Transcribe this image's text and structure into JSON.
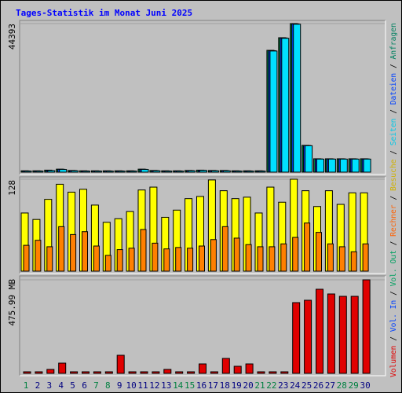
{
  "title": "Tages-Statistik im Monat Juni 2025",
  "separator": "/",
  "legend": [
    {
      "name": "Volumen",
      "color": "#e00000"
    },
    {
      "name": "Vol. In",
      "color": "#0040ff"
    },
    {
      "name": "Vol. Out",
      "color": "#00a060"
    },
    {
      "name": "Rechner",
      "color": "#ff6000"
    },
    {
      "name": "Besuche",
      "color": "#d0b000"
    },
    {
      "name": "Seiten",
      "color": "#00c8e8"
    },
    {
      "name": "Dateien",
      "color": "#0040ff"
    },
    {
      "name": "Anfragen",
      "color": "#008060"
    }
  ],
  "chart_data": [
    {
      "type": "bar",
      "ylim": [
        0,
        44393
      ],
      "yticks": [
        44393
      ],
      "series": [
        {
          "color": "#008040",
          "values": [
            400,
            400,
            600,
            900,
            500,
            400,
            400,
            400,
            400,
            400,
            900,
            500,
            400,
            400,
            500,
            600,
            500,
            500,
            400,
            400,
            400,
            36400,
            40170,
            44393,
            8000,
            4000,
            4000,
            4000,
            4000,
            4000
          ]
        },
        {
          "color": "#0040ff",
          "values": [
            350,
            350,
            500,
            850,
            450,
            350,
            350,
            350,
            350,
            350,
            850,
            450,
            350,
            350,
            450,
            550,
            450,
            450,
            350,
            350,
            350,
            36300,
            40100,
            44300,
            7950,
            3950,
            3950,
            3950,
            3950,
            3950
          ]
        },
        {
          "color": "#00e0ff",
          "values": [
            300,
            300,
            450,
            800,
            400,
            300,
            300,
            300,
            300,
            300,
            800,
            400,
            300,
            300,
            400,
            500,
            400,
            400,
            300,
            300,
            300,
            36200,
            40000,
            44200,
            7900,
            3900,
            3900,
            3900,
            3900,
            3900
          ]
        }
      ]
    },
    {
      "type": "bar",
      "ylim": [
        0,
        128
      ],
      "yticks": [
        128
      ],
      "series": [
        {
          "color": "#ffff00",
          "values": [
            81,
            72,
            100,
            121,
            110,
            114,
            92,
            68,
            73,
            83,
            113,
            117,
            75,
            85,
            101,
            104,
            127,
            112,
            101,
            103,
            81,
            117,
            96,
            128,
            112,
            90,
            112,
            93,
            109,
            109
          ]
        },
        {
          "color": "#ff8000",
          "values": [
            36,
            43,
            34,
            62,
            51,
            55,
            35,
            22,
            30,
            32,
            58,
            39,
            31,
            33,
            32,
            35,
            44,
            62,
            46,
            37,
            34,
            34,
            38,
            47,
            67,
            54,
            38,
            34,
            27,
            38
          ]
        }
      ]
    },
    {
      "type": "bar",
      "ylim": [
        0,
        475.99
      ],
      "yticks": [
        {
          "value": 475.99,
          "label": "475.99 MB"
        }
      ],
      "categories": [
        "1",
        "2",
        "3",
        "4",
        "5",
        "6",
        "7",
        "8",
        "9",
        "10",
        "11",
        "12",
        "13",
        "14",
        "15",
        "16",
        "17",
        "18",
        "19",
        "20",
        "21",
        "22",
        "23",
        "24",
        "25",
        "26",
        "27",
        "28",
        "29",
        "30"
      ],
      "category_colors": [
        "#008040",
        "#000080",
        "#000080",
        "#000080",
        "#000080",
        "#000080",
        "#008040",
        "#008040",
        "#000080",
        "#000080",
        "#000080",
        "#000080",
        "#000080",
        "#008040",
        "#008040",
        "#000080",
        "#000080",
        "#000080",
        "#000080",
        "#000080",
        "#008040",
        "#008040",
        "#000080",
        "#000080",
        "#000080",
        "#000080",
        "#000080",
        "#008040",
        "#008040",
        "#000080"
      ],
      "series": [
        {
          "color": "#e00000",
          "values": [
            8,
            8,
            20,
            52,
            8,
            8,
            8,
            8,
            92,
            8,
            8,
            8,
            20,
            8,
            8,
            48,
            8,
            76,
            36,
            48,
            8,
            8,
            8,
            360,
            372,
            428,
            404,
            392,
            392,
            475.99
          ]
        }
      ]
    }
  ]
}
